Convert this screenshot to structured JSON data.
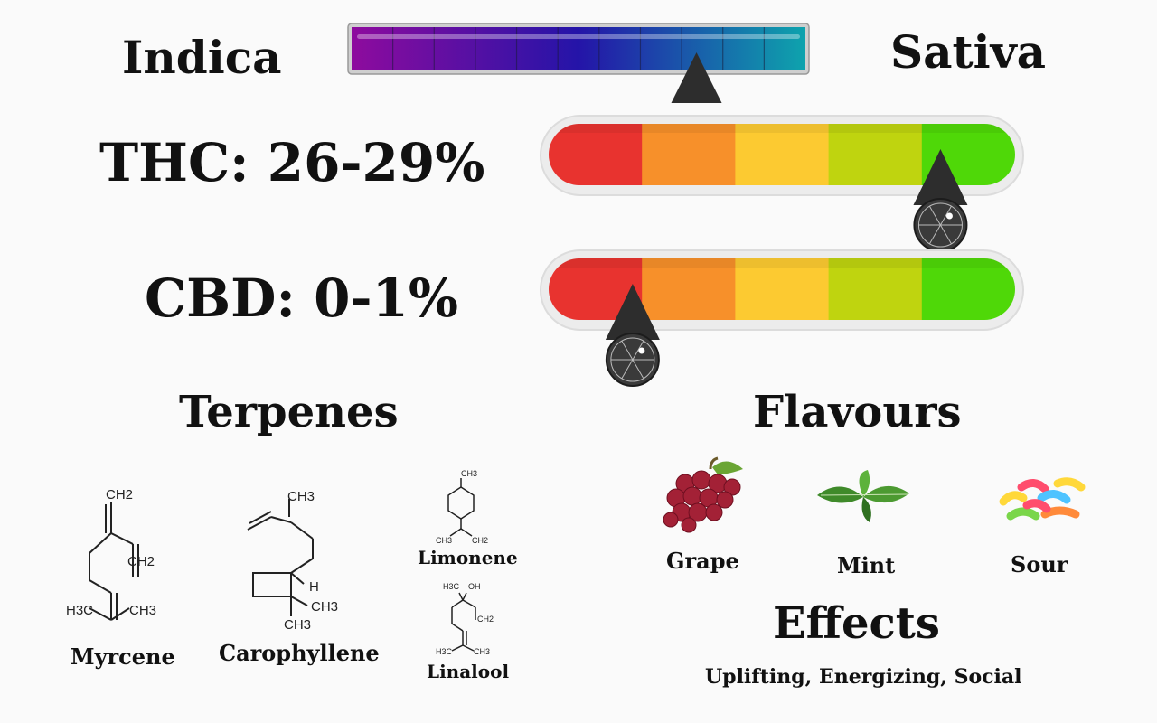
{
  "spectrum": {
    "left_label": "Indica",
    "right_label": "Sativa",
    "position": 0.76
  },
  "thc": {
    "label": "THC: 26-29%",
    "level": 0.84
  },
  "cbd": {
    "label": "CBD: 0-1%",
    "level": 0.18
  },
  "gauge_colors": [
    "#e8332f",
    "#f7902a",
    "#fcca31",
    "#bfd40f",
    "#4fd808"
  ],
  "spectrum_colors": [
    "#8e0b9e",
    "#2414a8",
    "#0ea3ad"
  ],
  "terpenes": {
    "heading": "Terpenes",
    "items": [
      {
        "name": "Myrcene",
        "formula_labels": [
          "CH2",
          "CH2",
          "H3C",
          "CH3"
        ]
      },
      {
        "name": "Carophyllene",
        "formula_labels": [
          "CH3",
          "H",
          "CH3",
          "CH3"
        ]
      },
      {
        "name": "Limonene",
        "formula_labels": [
          "CH3",
          "CH3",
          "CH2"
        ]
      },
      {
        "name": "Linalool",
        "formula_labels": [
          "H3C",
          "OH",
          "CH2",
          "H3C",
          "CH3"
        ]
      }
    ]
  },
  "flavours": {
    "heading": "Flavours",
    "items": [
      {
        "name": "Grape",
        "icon": "grape-icon"
      },
      {
        "name": "Mint",
        "icon": "mint-icon"
      },
      {
        "name": "Sour",
        "icon": "sour-candy-icon"
      }
    ]
  },
  "effects": {
    "heading": "Effects",
    "text": "Uplifting, Energizing, Social"
  }
}
